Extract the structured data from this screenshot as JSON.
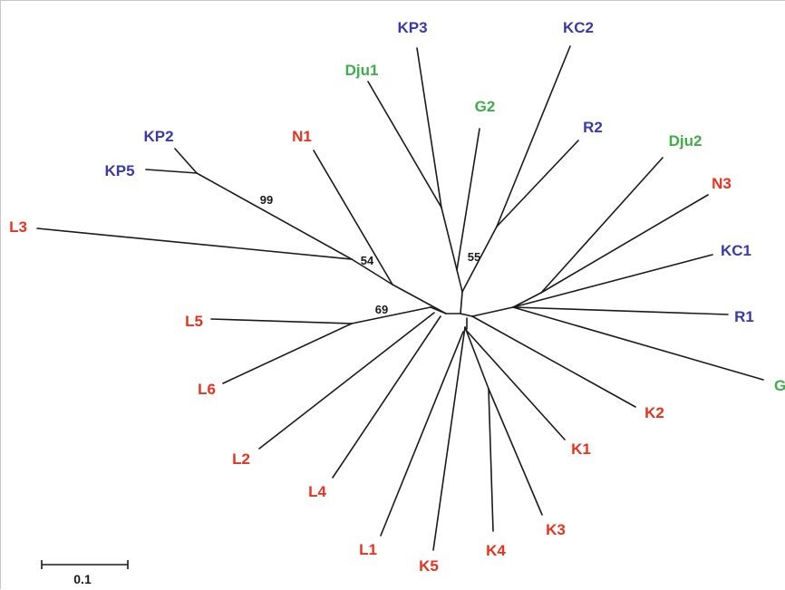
{
  "colors": {
    "red": "#e8321e",
    "blue": "#3a3aa6",
    "green": "#3fae4a",
    "branch": "#1a1a1a"
  },
  "tree": {
    "tips": [
      {
        "id": "kp3",
        "label": "KP3",
        "color": "blue"
      },
      {
        "id": "kc2",
        "label": "KC2",
        "color": "blue"
      },
      {
        "id": "dju1",
        "label": "Dju1",
        "color": "green"
      },
      {
        "id": "g2",
        "label": "G2",
        "color": "green"
      },
      {
        "id": "r2",
        "label": "R2",
        "color": "blue"
      },
      {
        "id": "n1",
        "label": "N1",
        "color": "red"
      },
      {
        "id": "kp2",
        "label": "KP2",
        "color": "blue"
      },
      {
        "id": "dju2",
        "label": "Dju2",
        "color": "green"
      },
      {
        "id": "kp5",
        "label": "KP5",
        "color": "blue"
      },
      {
        "id": "n3",
        "label": "N3",
        "color": "red"
      },
      {
        "id": "l3",
        "label": "L3",
        "color": "red"
      },
      {
        "id": "kc1",
        "label": "KC1",
        "color": "blue"
      },
      {
        "id": "r1",
        "label": "R1",
        "color": "blue"
      },
      {
        "id": "l5",
        "label": "L5",
        "color": "red"
      },
      {
        "id": "g",
        "label": "G",
        "color": "green"
      },
      {
        "id": "l6",
        "label": "L6",
        "color": "red"
      },
      {
        "id": "k2",
        "label": "K2",
        "color": "red"
      },
      {
        "id": "k1",
        "label": "K1",
        "color": "red"
      },
      {
        "id": "l2",
        "label": "L2",
        "color": "red"
      },
      {
        "id": "l4",
        "label": "L4",
        "color": "red"
      },
      {
        "id": "k3",
        "label": "K3",
        "color": "red"
      },
      {
        "id": "l1",
        "label": "L1",
        "color": "red"
      },
      {
        "id": "k5",
        "label": "K5",
        "color": "red"
      },
      {
        "id": "k4",
        "label": "K4",
        "color": "red"
      }
    ],
    "bootstrap": [
      {
        "id": "b99",
        "value": "99"
      },
      {
        "id": "b54",
        "value": "54"
      },
      {
        "id": "b55",
        "value": "55"
      },
      {
        "id": "b69",
        "value": "69"
      }
    ],
    "scale_bar": {
      "label": "0.1"
    }
  }
}
